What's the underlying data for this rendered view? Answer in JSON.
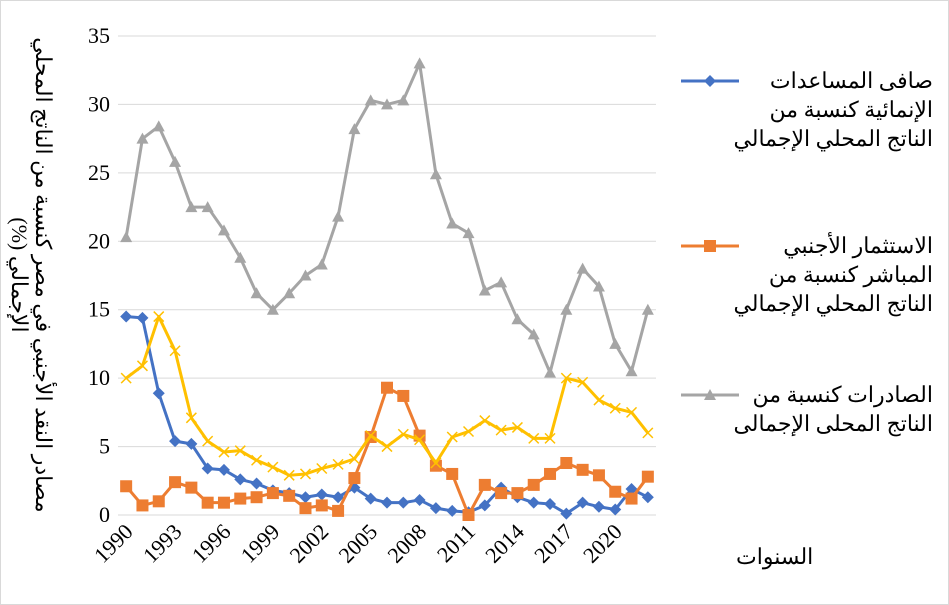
{
  "chart_data": {
    "type": "line",
    "y_label": "مصادر النقد الأجنبي في مصر كنسبة من الناتج المحلي الإجمالي (%)",
    "x_label": "السنوات",
    "categories": [
      "1990",
      null,
      null,
      "1993",
      null,
      null,
      "1996",
      null,
      null,
      "1999",
      null,
      null,
      "2002",
      null,
      null,
      "2005",
      null,
      null,
      "2008",
      null,
      null,
      "2011",
      null,
      null,
      "2014",
      null,
      null,
      "2017",
      null,
      null,
      "2020",
      null,
      null
    ],
    "ylim": [
      0,
      35
    ],
    "yticks": [
      0,
      5,
      10,
      15,
      20,
      25,
      30,
      35
    ],
    "grid": true,
    "series": [
      {
        "name": "صافى المساعدات الإنمائية كنسبة من الناتج المحلي الإجمالي",
        "color": "#4472c4",
        "marker": "diamond",
        "values": [
          14.5,
          14.4,
          8.9,
          5.4,
          5.2,
          3.4,
          3.3,
          2.6,
          2.3,
          1.8,
          1.6,
          1.3,
          1.5,
          1.3,
          2.0,
          1.2,
          0.9,
          0.9,
          1.1,
          0.5,
          0.3,
          0.2,
          0.7,
          2.0,
          1.3,
          0.9,
          0.8,
          0.1,
          0.9,
          0.6,
          0.4,
          1.9,
          1.3
        ]
      },
      {
        "name": "الاستثمار الأجنبي المباشر كنسبة من الناتج المحلي الإجمالي",
        "color": "#ed7d31",
        "marker": "square",
        "values": [
          2.1,
          0.7,
          1.0,
          2.4,
          2.0,
          0.9,
          0.9,
          1.2,
          1.3,
          1.6,
          1.4,
          0.5,
          0.7,
          0.3,
          2.7,
          5.7,
          9.3,
          8.7,
          5.8,
          3.6,
          3.0,
          0.0,
          2.2,
          1.6,
          1.6,
          2.2,
          3.0,
          3.8,
          3.3,
          2.9,
          1.7,
          1.2,
          2.8
        ]
      },
      {
        "name": "الصادرات كنسبة من الناتج المحلى الإجمالى",
        "color": "#a5a5a5",
        "marker": "triangle",
        "values": [
          20.3,
          27.5,
          28.4,
          25.8,
          22.5,
          22.5,
          20.8,
          18.8,
          16.2,
          15.0,
          16.2,
          17.5,
          18.3,
          21.8,
          28.2,
          30.3,
          30.0,
          30.3,
          33.0,
          24.9,
          21.3,
          20.6,
          16.4,
          17.0,
          14.3,
          13.2,
          10.4,
          15.0,
          18.0,
          16.7,
          12.5,
          10.5,
          15.0
        ]
      },
      {
        "color": "#ffc000",
        "marker": "x",
        "values": [
          10.0,
          10.9,
          14.5,
          12.0,
          7.1,
          5.4,
          4.6,
          4.7,
          4.0,
          3.5,
          2.9,
          3.0,
          3.4,
          3.7,
          4.1,
          5.8,
          5.0,
          5.9,
          5.5,
          3.8,
          5.7,
          6.1,
          6.9,
          6.2,
          6.4,
          5.6,
          5.6,
          10.0,
          9.7,
          8.4,
          7.8,
          7.5,
          6.0
        ]
      }
    ]
  }
}
